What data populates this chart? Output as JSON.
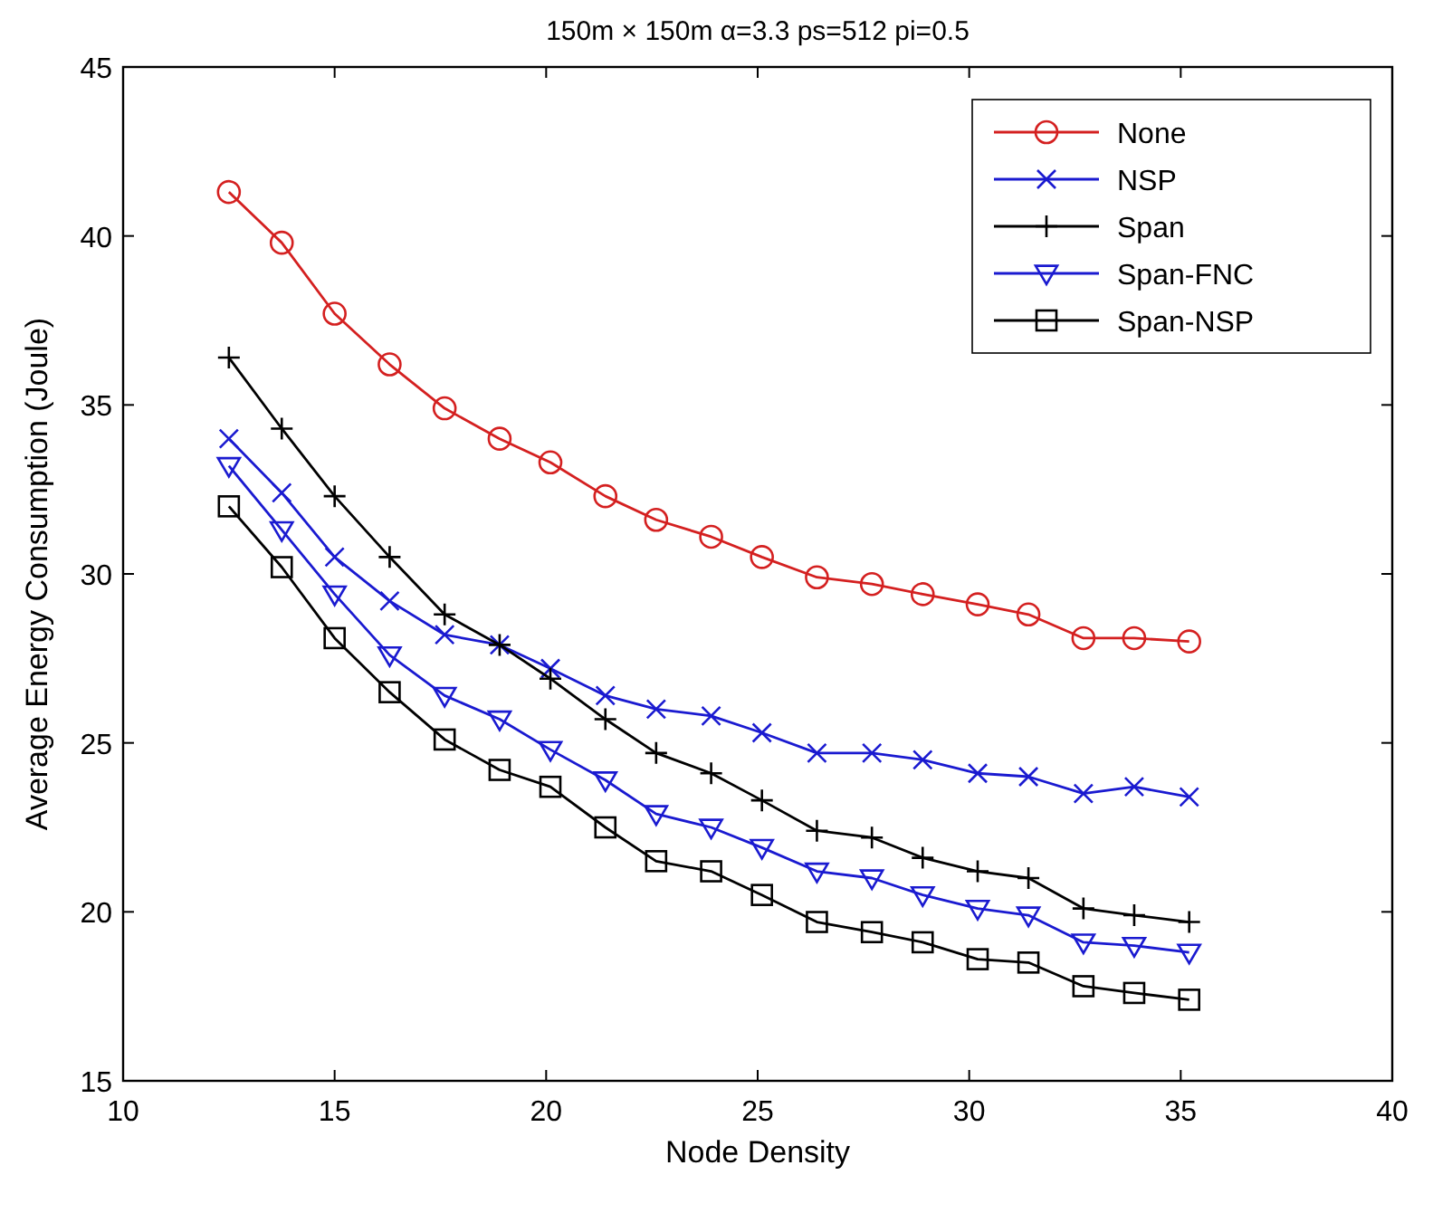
{
  "chart_data": {
    "type": "line",
    "title": "150m × 150m α=3.3 ps=512 pi=0.5",
    "xlabel": "Node Density",
    "ylabel": "Average Energy Consumption (Joule)",
    "x": [
      12.5,
      13.75,
      15,
      16.3,
      17.6,
      18.9,
      20.1,
      21.4,
      22.6,
      23.9,
      25.1,
      26.4,
      27.7,
      28.9,
      30.2,
      31.4,
      32.7,
      33.9,
      35.2
    ],
    "xlim": [
      10,
      40
    ],
    "xticks": [
      10,
      15,
      20,
      25,
      30,
      35,
      40
    ],
    "ylim": [
      15,
      45
    ],
    "yticks": [
      15,
      20,
      25,
      30,
      35,
      40,
      45
    ],
    "grid": false,
    "legend": "top right",
    "line_style": "solid",
    "series": [
      {
        "name": "None",
        "color": "#d42020",
        "marker": "circle",
        "values": [
          41.3,
          39.8,
          37.7,
          36.2,
          34.9,
          34.0,
          33.3,
          32.3,
          31.6,
          31.1,
          30.5,
          29.9,
          29.7,
          29.4,
          29.1,
          28.8,
          28.1,
          28.1,
          28.0
        ]
      },
      {
        "name": "NSP",
        "color": "#1a1ad0",
        "marker": "cross",
        "values": [
          34.0,
          32.4,
          30.5,
          29.2,
          28.2,
          27.9,
          27.2,
          26.4,
          26.0,
          25.8,
          25.3,
          24.7,
          24.7,
          24.5,
          24.1,
          24.0,
          23.5,
          23.7,
          23.4
        ]
      },
      {
        "name": "Span",
        "color": "#000000",
        "marker": "plus",
        "values": [
          36.4,
          34.3,
          32.3,
          30.5,
          28.8,
          27.9,
          26.9,
          25.7,
          24.7,
          24.1,
          23.3,
          22.4,
          22.2,
          21.6,
          21.2,
          21.0,
          20.1,
          19.9,
          19.7
        ]
      },
      {
        "name": "Span-FNC",
        "color": "#1a1ad0",
        "marker": "triangle",
        "values": [
          33.2,
          31.3,
          29.4,
          27.6,
          26.4,
          25.7,
          24.8,
          23.9,
          22.9,
          22.5,
          21.9,
          21.2,
          21.0,
          20.5,
          20.1,
          19.9,
          19.1,
          19.0,
          18.8
        ]
      },
      {
        "name": "Span-NSP",
        "color": "#000000",
        "marker": "square",
        "values": [
          32.0,
          30.2,
          28.1,
          26.5,
          25.1,
          24.2,
          23.7,
          22.5,
          21.5,
          21.2,
          20.5,
          19.7,
          19.4,
          19.1,
          18.6,
          18.5,
          17.8,
          17.6,
          17.4
        ]
      }
    ]
  }
}
